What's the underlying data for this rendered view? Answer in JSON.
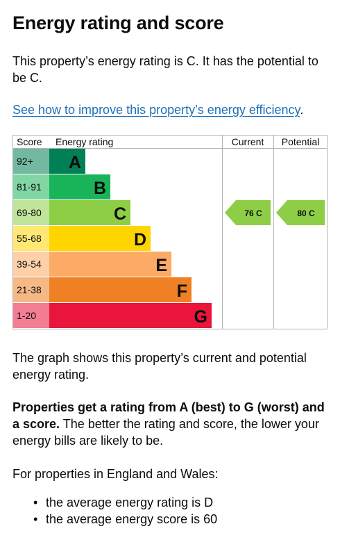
{
  "page": {
    "heading": "Energy rating and score",
    "intro": "This property’s energy rating is C. It has the potential to be C.",
    "improve_link": "See how to improve this property’s energy efficiency",
    "improve_link_suffix": ".",
    "graph_text": "The graph shows this property’s current and potential energy rating.",
    "ratings_bold": "Properties get a rating from A (best) to G (worst) and a score.",
    "ratings_rest": " The better the rating and score, the lower your energy bills are likely to be.",
    "region_text": "For properties in England and Wales:",
    "averages": [
      "the average energy rating is D",
      "the average energy score is 60"
    ]
  },
  "chart_data": {
    "type": "bar",
    "headers": {
      "score": "Score",
      "rating": "Energy rating",
      "current": "Current",
      "potential": "Potential"
    },
    "bands": [
      {
        "letter": "A",
        "range": "92+",
        "color": "#008054"
      },
      {
        "letter": "B",
        "range": "81-91",
        "color": "#19b459"
      },
      {
        "letter": "C",
        "range": "69-80",
        "color": "#8dce46"
      },
      {
        "letter": "D",
        "range": "55-68",
        "color": "#ffd500"
      },
      {
        "letter": "E",
        "range": "39-54",
        "color": "#fcaa65"
      },
      {
        "letter": "F",
        "range": "21-38",
        "color": "#ef8023"
      },
      {
        "letter": "G",
        "range": "1-20",
        "color": "#e9153b"
      }
    ],
    "current": {
      "score": 76,
      "letter": "C",
      "label": "76 C"
    },
    "potential": {
      "score": 80,
      "letter": "C",
      "label": "80 C"
    }
  }
}
